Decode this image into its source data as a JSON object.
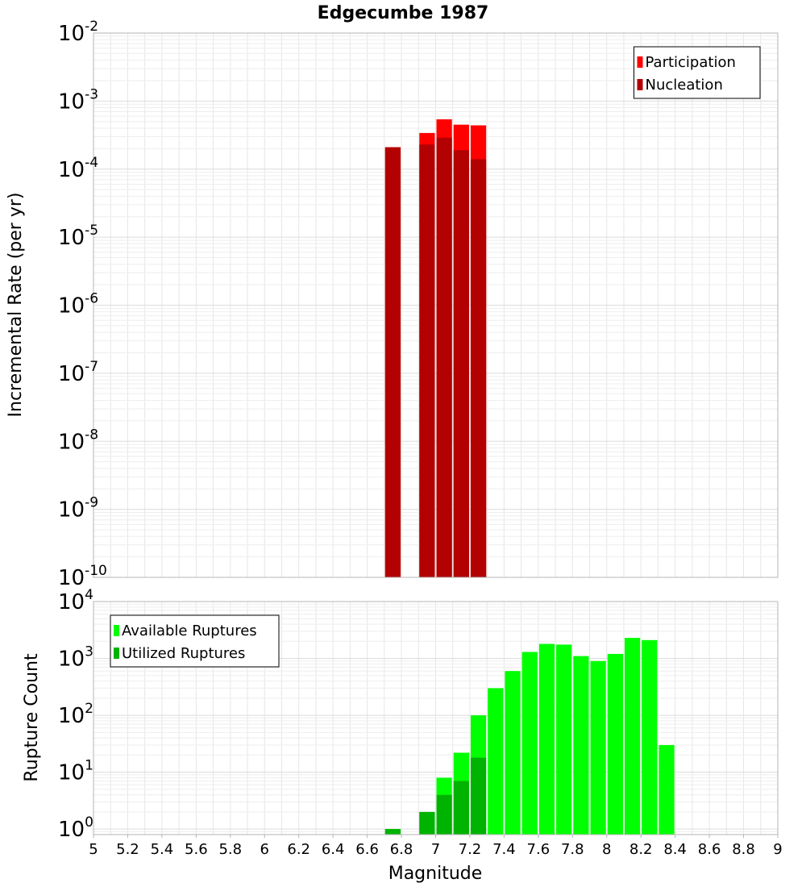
{
  "chart_data": [
    {
      "type": "bar",
      "title": "Edgecumbe 1987",
      "xlabel": "",
      "ylabel": "Incremental Rate (per yr)",
      "yscale": "log",
      "ylim": [
        1e-10,
        0.01
      ],
      "xlim": [
        5,
        9
      ],
      "bin_width": 0.1,
      "grid": true,
      "legend_position": "top-right",
      "y_ticks": [
        {
          "base": "10",
          "exp": "-10",
          "value": 1e-10
        },
        {
          "base": "10",
          "exp": "-9",
          "value": 1e-09
        },
        {
          "base": "10",
          "exp": "-8",
          "value": 1e-08
        },
        {
          "base": "10",
          "exp": "-7",
          "value": 1e-07
        },
        {
          "base": "10",
          "exp": "-6",
          "value": 1e-06
        },
        {
          "base": "10",
          "exp": "-5",
          "value": 1e-05
        },
        {
          "base": "10",
          "exp": "-4",
          "value": 0.0001
        },
        {
          "base": "10",
          "exp": "-3",
          "value": 0.001
        },
        {
          "base": "10",
          "exp": "-2",
          "value": 0.01
        }
      ],
      "series": [
        {
          "name": "Participation",
          "color": "#ff0000",
          "points": [
            {
              "x": 6.75,
              "y": 0.00021
            },
            {
              "x": 6.95,
              "y": 0.00034
            },
            {
              "x": 7.05,
              "y": 0.00054
            },
            {
              "x": 7.15,
              "y": 0.00045
            },
            {
              "x": 7.25,
              "y": 0.00044
            }
          ]
        },
        {
          "name": "Nucleation",
          "color": "#b30000",
          "points": [
            {
              "x": 6.75,
              "y": 0.00021
            },
            {
              "x": 6.95,
              "y": 0.00023
            },
            {
              "x": 7.05,
              "y": 0.00029
            },
            {
              "x": 7.15,
              "y": 0.00019
            },
            {
              "x": 7.25,
              "y": 0.00014
            }
          ]
        }
      ]
    },
    {
      "type": "bar",
      "title": "",
      "xlabel": "Magnitude",
      "ylabel": "Rupture Count",
      "yscale": "log",
      "ylim": [
        0.8,
        10000
      ],
      "xlim": [
        5,
        9
      ],
      "bin_width": 0.1,
      "grid": true,
      "legend_position": "top-left",
      "y_ticks": [
        {
          "base": "10",
          "exp": "0",
          "value": 1
        },
        {
          "base": "10",
          "exp": "1",
          "value": 10
        },
        {
          "base": "10",
          "exp": "2",
          "value": 100
        },
        {
          "base": "10",
          "exp": "3",
          "value": 1000
        },
        {
          "base": "10",
          "exp": "4",
          "value": 10000
        }
      ],
      "x_ticks": [
        "5",
        "5.2",
        "5.4",
        "5.6",
        "5.8",
        "6",
        "6.2",
        "6.4",
        "6.6",
        "6.8",
        "7",
        "7.2",
        "7.4",
        "7.6",
        "7.8",
        "8",
        "8.2",
        "8.4",
        "8.6",
        "8.8",
        "9"
      ],
      "series": [
        {
          "name": "Available Ruptures",
          "color": "#00ff00",
          "points": [
            {
              "x": 6.75,
              "y": 1
            },
            {
              "x": 6.95,
              "y": 2
            },
            {
              "x": 7.05,
              "y": 8
            },
            {
              "x": 7.15,
              "y": 22
            },
            {
              "x": 7.25,
              "y": 100
            },
            {
              "x": 7.35,
              "y": 300
            },
            {
              "x": 7.45,
              "y": 600
            },
            {
              "x": 7.55,
              "y": 1300
            },
            {
              "x": 7.65,
              "y": 1800
            },
            {
              "x": 7.75,
              "y": 1750
            },
            {
              "x": 7.85,
              "y": 1100
            },
            {
              "x": 7.95,
              "y": 900
            },
            {
              "x": 8.05,
              "y": 1200
            },
            {
              "x": 8.15,
              "y": 2300
            },
            {
              "x": 8.25,
              "y": 2100
            },
            {
              "x": 8.35,
              "y": 30
            }
          ]
        },
        {
          "name": "Utilized Ruptures",
          "color": "#00b300",
          "points": [
            {
              "x": 6.75,
              "y": 1
            },
            {
              "x": 6.95,
              "y": 2
            },
            {
              "x": 7.05,
              "y": 4
            },
            {
              "x": 7.15,
              "y": 7
            },
            {
              "x": 7.25,
              "y": 18
            }
          ]
        }
      ]
    }
  ]
}
